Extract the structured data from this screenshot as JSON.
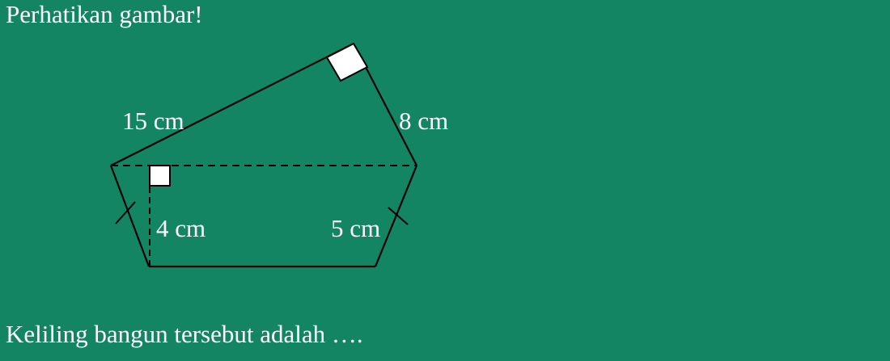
{
  "prompt": "Perhatikan gambar!",
  "question": "Keliling bangun tersebut adalah ….",
  "figure": {
    "labels": {
      "top_left_side": "15 cm",
      "top_right_side": "8 cm",
      "height": "4 cm",
      "lower_right_side": "5 cm"
    }
  },
  "colors": {
    "background": "#138563",
    "line": "#000000",
    "text": "#ffffff",
    "right_angle_fill": "#ffffff"
  }
}
